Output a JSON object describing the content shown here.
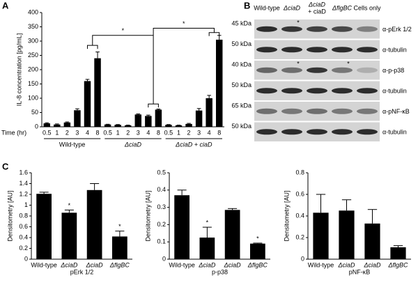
{
  "chart_data": [
    {
      "type": "bar",
      "panel": "A",
      "y_label": "IL-8 concentration [pg/mL]",
      "x_label": "Time (hr)",
      "categories": [
        "0.5",
        "1",
        "2",
        "3",
        "4",
        "8",
        "0.5",
        "1",
        "2",
        "3",
        "4",
        "8",
        "0.5",
        "1",
        "2",
        "3",
        "4",
        "8"
      ],
      "groups": [
        "Wild-type",
        "ΔciaD",
        "ΔciaD + ciaD"
      ],
      "series": [
        {
          "color": "#000000",
          "values": [
            12,
            8,
            15,
            58,
            160,
            240,
            8,
            7,
            5,
            43,
            38,
            60,
            7,
            5,
            10,
            57,
            100,
            305
          ],
          "errors": [
            2,
            2,
            2,
            5,
            6,
            22,
            1,
            1,
            1,
            2,
            3,
            2,
            1,
            1,
            2,
            7,
            10,
            15
          ]
        }
      ],
      "ylim": [
        0,
        400
      ],
      "yticks": [
        0,
        50,
        100,
        150,
        200,
        250,
        300,
        350,
        400
      ],
      "annotations": [
        {
          "text": "*"
        },
        {
          "text": "*"
        }
      ]
    },
    {
      "type": "bar",
      "panel": "C",
      "y_label": "Densitometry [AU]",
      "x_label": "pErk 1/2",
      "categories": [
        "Wild-type",
        "ΔciaD",
        "ΔciaD",
        "ΔflgBC"
      ],
      "series": [
        {
          "color": "#000000",
          "values": [
            1.21,
            0.86,
            1.28,
            0.42
          ],
          "errors": [
            0.03,
            0.05,
            0.12,
            0.1
          ]
        }
      ],
      "ylim": [
        0,
        1.6
      ],
      "yticks": [
        0,
        0.2,
        0.4,
        0.6,
        0.8,
        1,
        1.2,
        1.4,
        1.6
      ],
      "annotations": [
        {
          "index": 1,
          "text": "*"
        },
        {
          "index": 3,
          "text": "*"
        }
      ]
    },
    {
      "type": "bar",
      "y_label": "Densitometry [AU]",
      "x_label": "p-p38",
      "categories": [
        "Wild-type",
        "ΔciaD",
        "ΔciaD",
        "ΔflgBC"
      ],
      "series": [
        {
          "color": "#000000",
          "values": [
            0.37,
            0.125,
            0.285,
            0.09
          ],
          "errors": [
            0.03,
            0.06,
            0.008,
            0.003
          ]
        }
      ],
      "ylim": [
        0,
        0.5
      ],
      "yticks": [
        0,
        0.1,
        0.2,
        0.3,
        0.4,
        0.5
      ],
      "annotations": [
        {
          "index": 1,
          "text": "*"
        },
        {
          "index": 3,
          "text": "*"
        }
      ]
    },
    {
      "type": "bar",
      "y_label": "Densitometry [AU]",
      "x_label": "pNF-κB",
      "categories": [
        "Wild-type",
        "ΔciaD",
        "ΔciaD",
        "ΔflgBC"
      ],
      "series": [
        {
          "color": "#000000",
          "values": [
            0.43,
            0.45,
            0.33,
            0.11
          ],
          "errors": [
            0.17,
            0.1,
            0.13,
            0.015
          ]
        }
      ],
      "ylim": [
        0,
        0.8
      ],
      "yticks": [
        0,
        0.2,
        0.4,
        0.6,
        0.8
      ]
    }
  ],
  "blot": {
    "panel": "B",
    "lanes": [
      "Wild-type",
      "ΔciaD",
      [
        "ΔciaD",
        "+ ciaD"
      ],
      "ΔflgBC",
      "Cells only"
    ],
    "rows": [
      {
        "marker": "45 kDa",
        "antibody": "α-pErk 1/2"
      },
      {
        "marker": "50 kDa",
        "antibody": "α-tubulin"
      },
      {
        "marker": "40 kDa",
        "antibody": "α-p-p38"
      },
      {
        "marker": "50 kDa",
        "antibody": "α-tubulin"
      },
      {
        "marker": "65 kDa",
        "antibody": "α-pNF-κB"
      },
      {
        "marker": "50 kDa",
        "antibody": "α-tubulin"
      }
    ],
    "asterisks": [
      {
        "row": 0,
        "lane": 1,
        "text": "*"
      },
      {
        "row": 2,
        "lane": 1,
        "text": "*"
      },
      {
        "row": 2,
        "lane": 3,
        "text": "*"
      }
    ]
  }
}
